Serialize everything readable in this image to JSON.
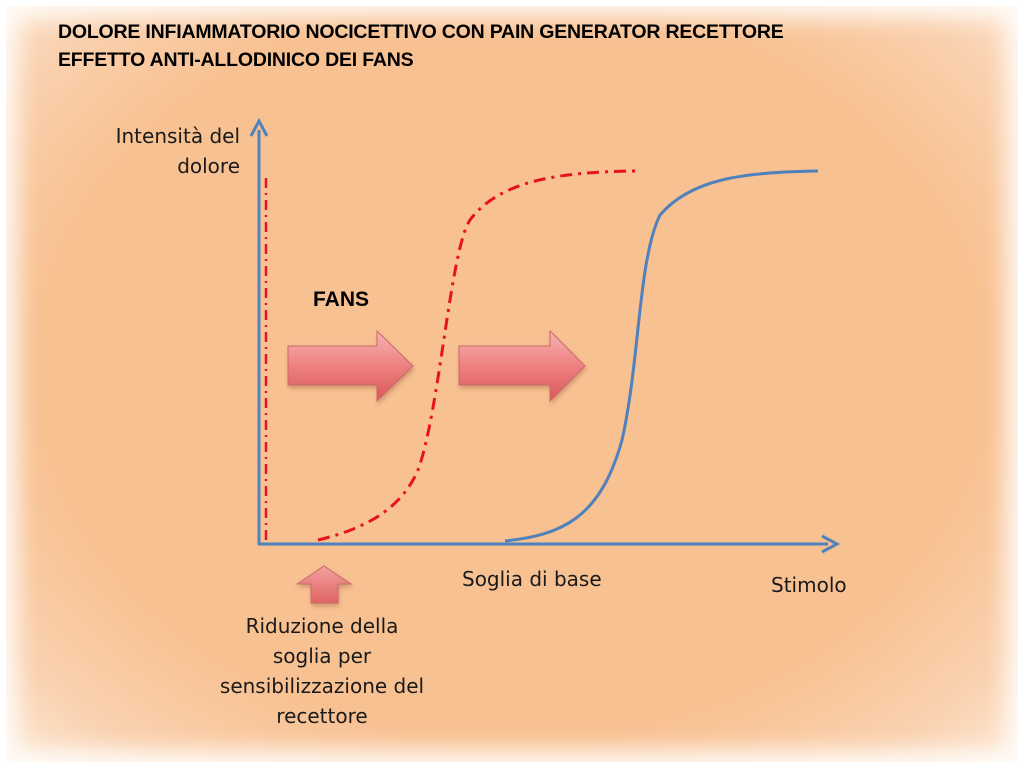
{
  "title": {
    "line1": "DOLORE INFIAMMATORIO NOCICETTIVO CON PAIN GENERATOR RECETTORE",
    "line2": "EFFETTO ANTI-ALLODINICO DEI FANS"
  },
  "axes": {
    "y_label_line1": "Intensità del",
    "y_label_line2": "dolore",
    "x_label": "Stimolo"
  },
  "annotations": {
    "fans": "FANS",
    "baseline_threshold": "Soglia  di base",
    "reduction_line1": "Riduzione della",
    "reduction_line2": "soglia per",
    "reduction_line3": "sensibilizzazione del",
    "reduction_line4": "recettore"
  },
  "colors": {
    "background": "#f8c192",
    "axis": "#4f81bd",
    "solid_curve": "#4f81bd",
    "dashed_curve": "#e8141b",
    "arrow_fill": "#ee7f7f"
  },
  "curves": [
    {
      "name": "baseline-curve",
      "style": "solid"
    },
    {
      "name": "sensitized-curve",
      "style": "dash-dot"
    }
  ]
}
